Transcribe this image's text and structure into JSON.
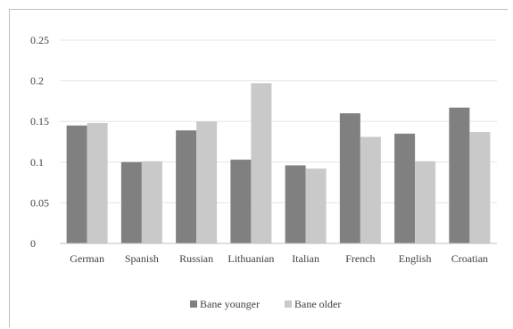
{
  "chart_data": {
    "type": "bar",
    "categories": [
      "German",
      "Spanish",
      "Russian",
      "Lithuanian",
      "Italian",
      "French",
      "English",
      "Croatian"
    ],
    "series": [
      {
        "name": "Bane younger",
        "color": "#808080",
        "values": [
          0.145,
          0.1,
          0.139,
          0.103,
          0.096,
          0.16,
          0.135,
          0.167
        ]
      },
      {
        "name": "Bane older",
        "color": "#c9c9c9",
        "values": [
          0.148,
          0.101,
          0.15,
          0.197,
          0.092,
          0.131,
          0.101,
          0.137
        ]
      }
    ],
    "y_ticks": [
      "0",
      "0.05",
      "0.1",
      "0.15",
      "0.2",
      "0.25"
    ],
    "ylim": [
      0,
      0.25
    ],
    "grid": true,
    "legend_position": "bottom"
  }
}
